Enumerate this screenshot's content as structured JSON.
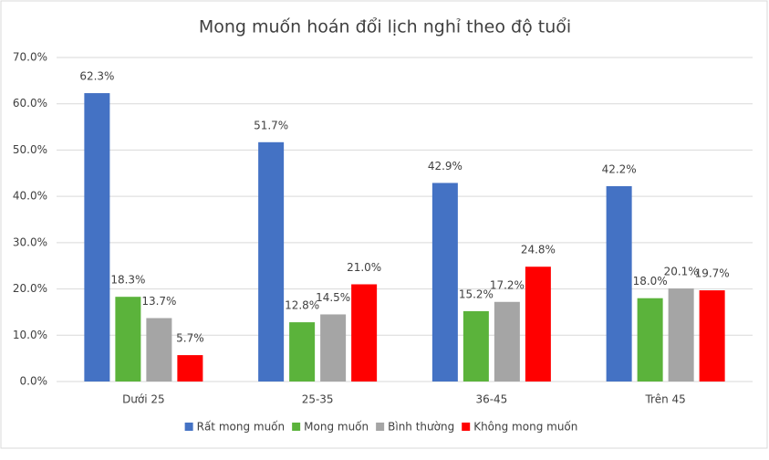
{
  "chart_data": {
    "type": "bar",
    "title": "Mong muốn hoán đổi lịch nghỉ theo độ tuổi",
    "categories": [
      "Dưới 25",
      "25-35",
      "36-45",
      "Trên 45"
    ],
    "series": [
      {
        "name": "Rất mong muốn",
        "color": "#4472c4",
        "values": [
          62.3,
          51.7,
          42.9,
          42.2
        ],
        "value_labels": [
          "62.3%",
          "51.7%",
          "42.9%",
          "42.2%"
        ]
      },
      {
        "name": "Mong muốn",
        "color": "#5bb33b",
        "values": [
          18.3,
          12.8,
          15.2,
          18.0
        ],
        "value_labels": [
          "18.3%",
          "12.8%",
          "15.2%",
          "18.0%"
        ]
      },
      {
        "name": "Bình thường",
        "color": "#a5a5a5",
        "values": [
          13.7,
          14.5,
          17.2,
          20.1
        ],
        "value_labels": [
          "13.7%",
          "14.5%",
          "17.2%",
          "20.1%"
        ]
      },
      {
        "name": "Không mong muốn",
        "color": "#ff0000",
        "values": [
          5.7,
          21.0,
          24.8,
          19.7
        ],
        "value_labels": [
          "5.7%",
          "21.0%",
          "24.8%",
          "19.7%"
        ]
      }
    ],
    "ylim": [
      0,
      70
    ],
    "yticks": [
      {
        "value": 0,
        "label": "0.0%"
      },
      {
        "value": 10,
        "label": "10.0%"
      },
      {
        "value": 20,
        "label": "20.0%"
      },
      {
        "value": 30,
        "label": "30.0%"
      },
      {
        "value": 40,
        "label": "40.0%"
      },
      {
        "value": 50,
        "label": "50.0%"
      },
      {
        "value": 60,
        "label": "60.0%"
      },
      {
        "value": 70,
        "label": "70.0%"
      }
    ],
    "grid": true,
    "legend": "bottom"
  }
}
